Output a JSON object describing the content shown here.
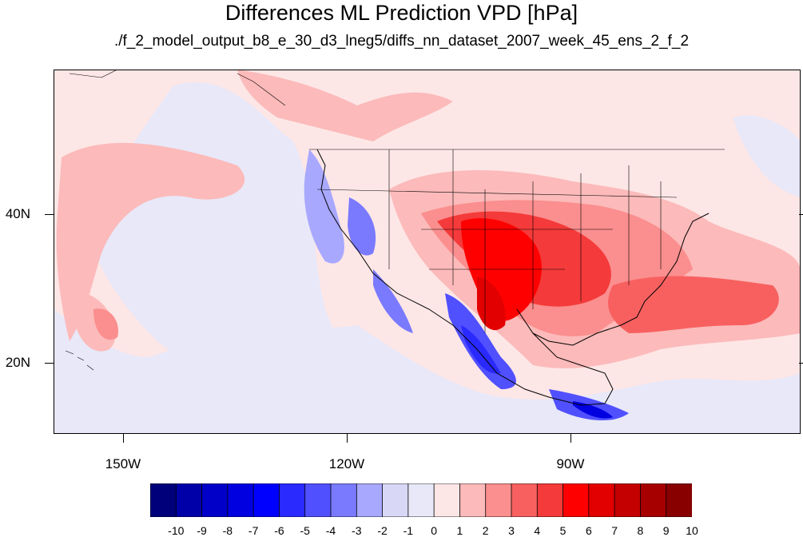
{
  "title": "Differences ML Prediction VPD [hPa]",
  "subtitle": "./f_2_model_output_b8_e_30_d3_lneg5/diffs_nn_dataset_2007_week_45_ens_2_f_2",
  "map": {
    "lat_labels": [
      "40N",
      "20N"
    ],
    "lon_labels": [
      "150W",
      "120W",
      "90W"
    ]
  },
  "colorbar": {
    "labels": [
      "-10",
      "-9",
      "-8",
      "-7",
      "-6",
      "-5",
      "-4",
      "-3",
      "-2",
      "-1",
      "0",
      "1",
      "2",
      "3",
      "4",
      "5",
      "6",
      "7",
      "8",
      "9",
      "10"
    ],
    "colors": [
      "#00007a",
      "#0000a8",
      "#0000c8",
      "#0000e0",
      "#0000ff",
      "#2a2aff",
      "#5050ff",
      "#7a7aff",
      "#a8a8ff",
      "#d8d8f6",
      "#e8e8f8",
      "#fde6e6",
      "#fcbaba",
      "#fb8e8e",
      "#f86060",
      "#f43a3a",
      "#ff0000",
      "#e20000",
      "#c40000",
      "#a60000",
      "#880000"
    ]
  }
}
